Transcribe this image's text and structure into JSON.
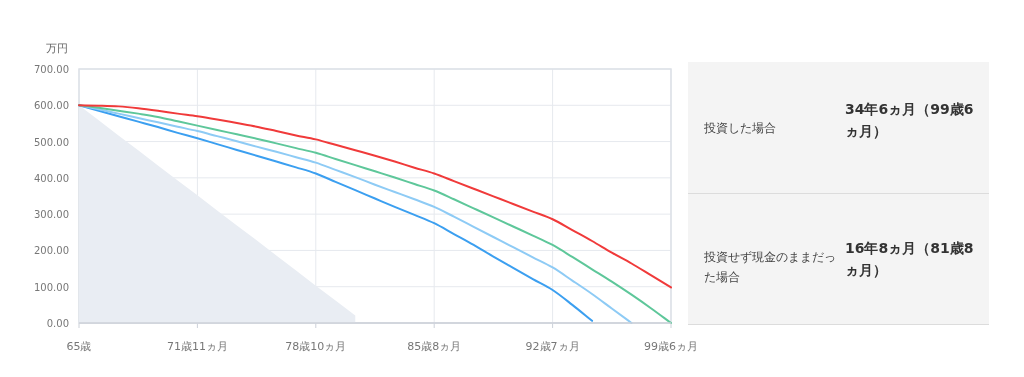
{
  "chart_data": [
    {
      "type": "line",
      "ylabel": "万円",
      "categories": [
        "65歳",
        null,
        null,
        null,
        null,
        null,
        "71歳11ヵ月",
        null,
        null,
        null,
        null,
        null,
        "78歳10ヵ月",
        null,
        null,
        null,
        null,
        null,
        "85歳8ヵ月",
        null,
        null,
        null,
        null,
        null,
        "92歳7ヵ月",
        null,
        null,
        null,
        null,
        null,
        "99歳6ヵ月"
      ],
      "ylim": [
        0,
        700
      ],
      "yticks": [
        {
          "value": 0,
          "label": "0.00"
        },
        {
          "value": 100,
          "label": "100.00"
        },
        {
          "value": 200,
          "label": "200.00"
        },
        {
          "value": 300,
          "label": "300.00"
        },
        {
          "value": 400,
          "label": "400.00"
        },
        {
          "value": 500,
          "label": "500.00"
        },
        {
          "value": 600,
          "label": "600.00"
        },
        {
          "value": 700,
          "label": "700.00"
        }
      ],
      "grid": true,
      "marker": "none",
      "line_style": "solid",
      "series": [
        {
          "type": "area",
          "color": "#e9edf3",
          "values": [
            600,
            559,
            517,
            476,
            434,
            393,
            352,
            310,
            269,
            228,
            186,
            145,
            103,
            62,
            21,
            null,
            null,
            null,
            null,
            null,
            null,
            null,
            null,
            null,
            null,
            null,
            null,
            null,
            null,
            null,
            null
          ]
        },
        {
          "color": "#3b9ff0",
          "values": [
            600,
            585,
            570,
            555,
            540,
            524,
            509,
            493,
            477,
            461,
            445,
            429,
            412,
            389,
            366,
            343,
            320,
            298,
            275,
            245,
            215,
            183,
            152,
            121,
            91,
            50,
            6,
            null,
            null,
            null,
            null
          ]
        },
        {
          "color": "#8ecbf5",
          "values": [
            600,
            589,
            577,
            565,
            553,
            541,
            529,
            515,
            501,
            486,
            472,
            457,
            442,
            422,
            402,
            381,
            361,
            341,
            320,
            293,
            265,
            237,
            209,
            181,
            153,
            117,
            80,
            40,
            0,
            null,
            null
          ]
        },
        {
          "color": "#5ec79a",
          "values": [
            600,
            593,
            585,
            577,
            568,
            556,
            544,
            532,
            520,
            508,
            495,
            482,
            469,
            452,
            435,
            418,
            401,
            383,
            365,
            341,
            316,
            291,
            266,
            241,
            215,
            182,
            148,
            114,
            78,
            40,
            0
          ]
        },
        {
          "color": "#f03a3a",
          "values": [
            600,
            599,
            597,
            592,
            585,
            577,
            570,
            561,
            551,
            541,
            529,
            517,
            506,
            491,
            476,
            461,
            445,
            428,
            412,
            391,
            370,
            349,
            328,
            307,
            286,
            256,
            226,
            194,
            164,
            131,
            98
          ]
        }
      ]
    },
    {
      "type": "other",
      "annotations": [
        "投資した場合",
        "34年6ヵ月（99歳6ヵ月）",
        "投資せず現金のままだった場合",
        "16年8ヵ月（81歳8ヵ月）"
      ]
    }
  ]
}
